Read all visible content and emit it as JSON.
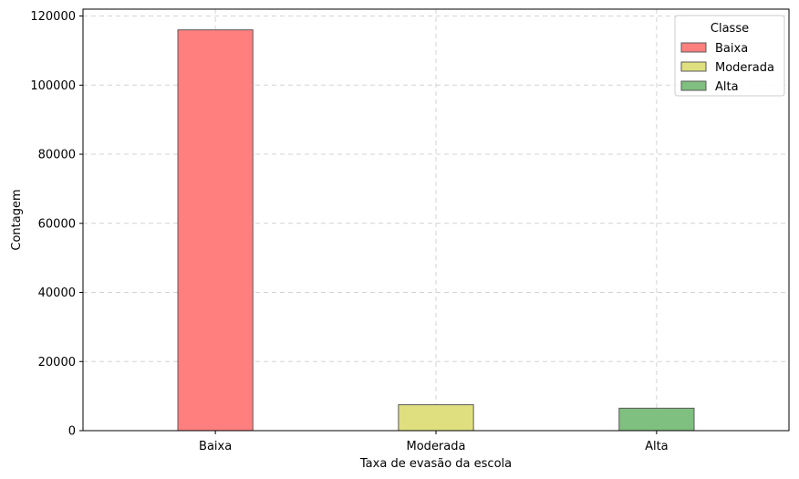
{
  "chart_data": {
    "type": "bar",
    "title": "",
    "xlabel": "Taxa de evasão da escola",
    "ylabel": "Contagem",
    "categories": [
      "Baixa",
      "Moderada",
      "Alta"
    ],
    "values": [
      116000,
      7500,
      6500
    ],
    "colors": [
      "#ff7f7f",
      "#dfdf7f",
      "#7fbf7f"
    ],
    "edge_color": "#5a5a5a",
    "ylim": [
      0,
      122000
    ],
    "yticks": [
      0,
      20000,
      40000,
      60000,
      80000,
      100000,
      120000
    ],
    "grid": true,
    "legend": {
      "title": "Classe",
      "placement": "top-right",
      "entries": [
        "Baixa",
        "Moderada",
        "Alta"
      ]
    }
  }
}
